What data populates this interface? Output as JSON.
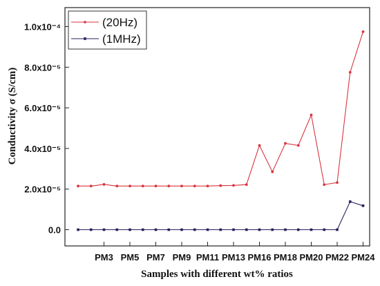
{
  "chart_data": {
    "type": "line",
    "xlabel": "Samples with different wt% ratios",
    "ylabel": "Conductivity σ (S/cm)",
    "ylim": [
      -1.2e-05,
      0.0001
    ],
    "yticks": [
      {
        "value": 0,
        "label": "0.0"
      },
      {
        "value": 2e-05,
        "label": "2.0x10⁻⁵"
      },
      {
        "value": 4e-05,
        "label": "4.0x10⁻⁵"
      },
      {
        "value": 6e-05,
        "label": "6.0x10⁻⁵"
      },
      {
        "value": 8e-05,
        "label": "8.0x10⁻⁵"
      },
      {
        "value": 0.0001,
        "label": "1.0x10⁻⁴"
      }
    ],
    "x": [
      1,
      2,
      3,
      4,
      5,
      6,
      7,
      8,
      9,
      10,
      11,
      12,
      13,
      14,
      15,
      16,
      17,
      18,
      19,
      20,
      21,
      22,
      23,
      24
    ],
    "xticks": [
      {
        "value": 3,
        "label": "PM3"
      },
      {
        "value": 5,
        "label": "PM5"
      },
      {
        "value": 7,
        "label": "PM7"
      },
      {
        "value": 9,
        "label": "PM9"
      },
      {
        "value": 11,
        "label": "PM11"
      },
      {
        "value": 13,
        "label": "PM13"
      },
      {
        "value": 15,
        "label": "PM16"
      },
      {
        "value": 17,
        "label": "PM18"
      },
      {
        "value": 19,
        "label": "PM20"
      },
      {
        "value": 21,
        "label": "PM22"
      },
      {
        "value": 23,
        "label": "PM24"
      }
    ],
    "xlim": [
      1,
      24
    ],
    "legend_position": "top-left",
    "series": [
      {
        "name": "(20Hz)",
        "color": "#d9343d",
        "marker": "circle",
        "values": [
          2.15e-05,
          2.15e-05,
          2.23e-05,
          2.15e-05,
          2.15e-05,
          2.15e-05,
          2.15e-05,
          2.15e-05,
          2.15e-05,
          2.15e-05,
          2.15e-05,
          2.17e-05,
          2.18e-05,
          2.22e-05,
          4.15e-05,
          2.85e-05,
          4.25e-05,
          4.15e-05,
          5.65e-05,
          2.22e-05,
          2.32e-05,
          7.75e-05,
          9.75e-05,
          null
        ]
      },
      {
        "name": "(1MHz)",
        "color": "#2b1d5a",
        "marker": "square",
        "values": [
          0,
          0,
          0,
          0,
          0,
          0,
          0,
          0,
          0,
          0,
          0,
          0,
          0,
          0,
          0,
          0,
          0,
          0,
          0,
          0,
          0,
          1.38e-05,
          1.18e-05,
          null
        ]
      }
    ]
  }
}
